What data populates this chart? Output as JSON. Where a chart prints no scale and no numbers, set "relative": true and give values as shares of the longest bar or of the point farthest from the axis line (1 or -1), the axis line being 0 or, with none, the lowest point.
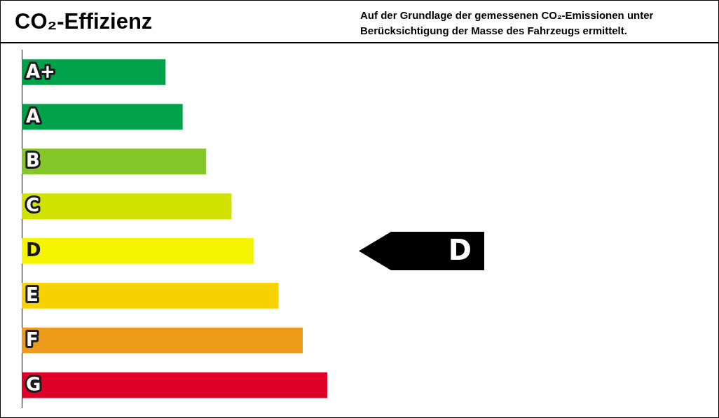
{
  "chart_data": {
    "type": "bar",
    "orientation": "horizontal",
    "relative": true,
    "title": "CO₂-Effizienz",
    "subtitle": "Auf der Grundlage der gemessenen CO₂-Emissionen unter Berücksichtigung der Masse des Fahrzeugs ermittelt.",
    "categories": [
      "A+",
      "A",
      "B",
      "C",
      "D",
      "E",
      "F",
      "G"
    ],
    "values": [
      0.47,
      0.526,
      0.603,
      0.686,
      0.759,
      0.84,
      0.919,
      1
    ],
    "colors": [
      "#00a14b",
      "#00a14b",
      "#85c629",
      "#d1e100",
      "#f6f500",
      "#f6d300",
      "#ec9b1b",
      "#df0029"
    ],
    "needle": "D",
    "legend": false
  }
}
